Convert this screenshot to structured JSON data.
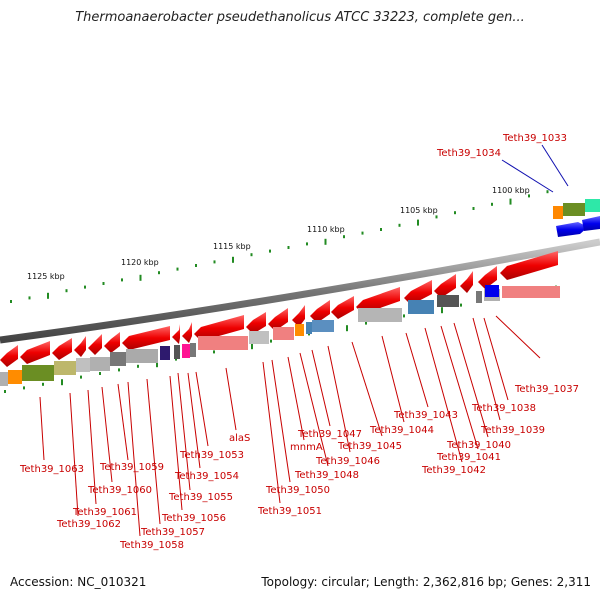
{
  "title": "Thermoanaerobacter pseudethanolicus ATCC 33223, complete gen...",
  "footer": {
    "accession": "Accession: NC_010321",
    "summary": "Topology: circular; Length: 2,362,816 bp; Genes: 2,311"
  },
  "axis": {
    "ticks": [
      {
        "label": "1100 kbp"
      },
      {
        "label": "1105 kbp"
      },
      {
        "label": "1110 kbp"
      },
      {
        "label": "1115 kbp"
      },
      {
        "label": "1120 kbp"
      },
      {
        "label": "1125 kbp"
      }
    ]
  },
  "gene_labels": [
    {
      "text": "Teth39_1033",
      "color": "#1010b0"
    },
    {
      "text": "Teth39_1034",
      "color": "#1010b0"
    },
    {
      "text": "Teth39_1037",
      "color": "#c80000"
    },
    {
      "text": "Teth39_1038",
      "color": "#c80000"
    },
    {
      "text": "Teth39_1039",
      "color": "#c80000"
    },
    {
      "text": "Teth39_1040",
      "color": "#c80000"
    },
    {
      "text": "Teth39_1041",
      "color": "#c80000"
    },
    {
      "text": "Teth39_1042",
      "color": "#c80000"
    },
    {
      "text": "Teth39_1043",
      "color": "#c80000"
    },
    {
      "text": "Teth39_1044",
      "color": "#c80000"
    },
    {
      "text": "Teth39_1045",
      "color": "#c80000"
    },
    {
      "text": "Teth39_1046",
      "color": "#c80000"
    },
    {
      "text": "Teth39_1047",
      "color": "#c80000"
    },
    {
      "text": "Teth39_1048",
      "color": "#c80000"
    },
    {
      "text": "mnmA",
      "color": "#c80000"
    },
    {
      "text": "Teth39_1050",
      "color": "#c80000"
    },
    {
      "text": "Teth39_1051",
      "color": "#c80000"
    },
    {
      "text": "alaS",
      "color": "#c80000"
    },
    {
      "text": "Teth39_1053",
      "color": "#c80000"
    },
    {
      "text": "Teth39_1054",
      "color": "#c80000"
    },
    {
      "text": "Teth39_1055",
      "color": "#c80000"
    },
    {
      "text": "Teth39_1056",
      "color": "#c80000"
    },
    {
      "text": "Teth39_1057",
      "color": "#c80000"
    },
    {
      "text": "Teth39_1058",
      "color": "#c80000"
    },
    {
      "text": "Teth39_1059",
      "color": "#c80000"
    },
    {
      "text": "Teth39_1060",
      "color": "#c80000"
    },
    {
      "text": "Teth39_1061",
      "color": "#c80000"
    },
    {
      "text": "Teth39_1062",
      "color": "#c80000"
    },
    {
      "text": "Teth39_1063",
      "color": "#c80000"
    }
  ],
  "colors": {
    "reverse_gene": "#ee1111",
    "forward_gene": "#1111ee",
    "backbone": "#888888",
    "tick": "#228b22"
  }
}
